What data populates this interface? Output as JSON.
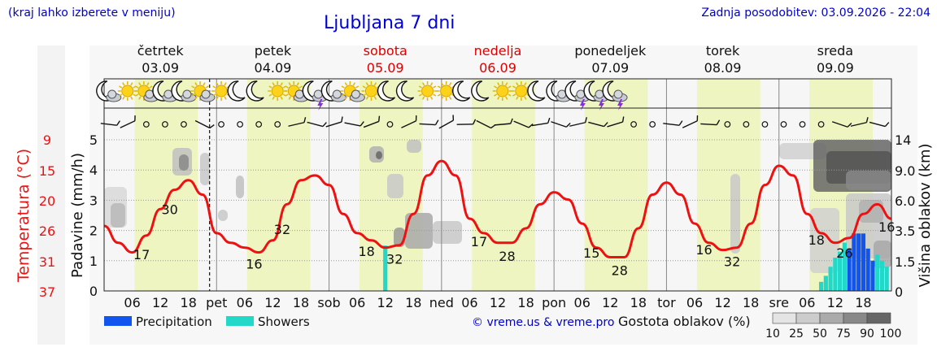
{
  "header": {
    "hint": "(kraj lahko izberete v meniju)",
    "title": "Ljubljana 7 dni",
    "updated": "Zadnja posodobitev: 03.09.2026 - 22:04"
  },
  "days": [
    {
      "name": "četrtek",
      "date": "03.09",
      "weekend": false
    },
    {
      "name": "petek",
      "date": "04.09",
      "weekend": false
    },
    {
      "name": "sobota",
      "date": "05.09",
      "weekend": true
    },
    {
      "name": "nedelja",
      "date": "06.09",
      "weekend": true
    },
    {
      "name": "ponedeljek",
      "date": "07.09",
      "weekend": false
    },
    {
      "name": "torek",
      "date": "08.09",
      "weekend": false
    },
    {
      "name": "sreda",
      "date": "09.09",
      "weekend": false
    }
  ],
  "colors": {
    "temperature": "#ee1111",
    "precipitation": "#1155ee",
    "showers": "#22d8c8",
    "daylight": "#eef5c0",
    "night": "#f6f6f6",
    "weekend": "#dd0000",
    "link": "#0000cc"
  },
  "chart_data": {
    "type": "line",
    "x_unit": "hour",
    "x_tick_labels": [
      "06",
      "12",
      "18",
      "pet",
      "06",
      "12",
      "18",
      "sob",
      "06",
      "12",
      "18",
      "ned",
      "06",
      "12",
      "18",
      "pon",
      "06",
      "12",
      "18",
      "tor",
      "06",
      "12",
      "18",
      "sre",
      "06",
      "12",
      "18"
    ],
    "left_axis": {
      "label": "Padavine (mm/h)",
      "range": [
        0,
        5
      ],
      "ticks": [
        "0",
        "1",
        "2",
        "3",
        "4",
        "5"
      ]
    },
    "temp_axis": {
      "label": "Temperatura (°C)",
      "ticks": [
        "9",
        "15",
        "20",
        "26",
        "31",
        "37"
      ]
    },
    "right_axis": {
      "label": "Višina oblakov (km)",
      "ticks": [
        "0",
        "1.5",
        "3.5",
        "6.0",
        "9.0",
        "14"
      ]
    },
    "temperature": {
      "name": "Temperatura",
      "x": [
        0,
        3,
        6,
        9,
        12,
        15,
        18,
        21,
        24,
        27,
        30,
        33,
        36,
        39,
        42,
        45,
        48,
        51,
        54,
        57,
        60,
        63,
        66,
        69,
        72,
        75,
        78,
        81,
        84,
        87,
        90,
        93,
        96,
        99,
        102,
        105,
        108,
        111,
        114,
        117,
        120,
        123,
        126,
        129,
        132,
        135,
        138,
        141,
        144,
        147,
        150,
        153,
        156,
        159,
        162,
        165,
        168
      ],
      "y": [
        22.5,
        19,
        17,
        20.5,
        26,
        30,
        32,
        29,
        21,
        19,
        18,
        17,
        19.5,
        27,
        32,
        33,
        31,
        25,
        21,
        19.5,
        18,
        18.5,
        25,
        33,
        36,
        33,
        24,
        21,
        19,
        19,
        22,
        27,
        29.5,
        28,
        23,
        18,
        16,
        16,
        22,
        29,
        31.5,
        29,
        23,
        19,
        17.5,
        18,
        23,
        31,
        35,
        33,
        25,
        21,
        19,
        20,
        25,
        27,
        24
      ]
    },
    "temperature_labels": [
      {
        "x": 8,
        "text": "17"
      },
      {
        "x": 14,
        "text": "30"
      },
      {
        "x": 32,
        "text": "16"
      },
      {
        "x": 38,
        "text": "32"
      },
      {
        "x": 56,
        "text": "18"
      },
      {
        "x": 62,
        "text": "32"
      },
      {
        "x": 80,
        "text": "17"
      },
      {
        "x": 86,
        "text": "28"
      },
      {
        "x": 104,
        "text": "15"
      },
      {
        "x": 110,
        "text": "28"
      },
      {
        "x": 128,
        "text": "16"
      },
      {
        "x": 134,
        "text": "32"
      },
      {
        "x": 152,
        "text": "18"
      },
      {
        "x": 158,
        "text": "26"
      },
      {
        "x": 167,
        "text": "16"
      }
    ],
    "precipitation": {
      "name": "Precipitation",
      "x": [
        159,
        160,
        161,
        162,
        163,
        164
      ],
      "values": [
        1.4,
        1.9,
        1.9,
        1.9,
        1.4,
        1.0
      ]
    },
    "showers": {
      "name": "Showers",
      "x": [
        60,
        153,
        154,
        155,
        156,
        157,
        158,
        165,
        166,
        167
      ],
      "values": [
        1.5,
        0.3,
        0.5,
        0.8,
        1.1,
        1.3,
        1.6,
        1.2,
        1.0,
        0.8
      ]
    },
    "cloud_legend": {
      "label": "Gostota oblakov (%)",
      "ticks": [
        "10",
        "25",
        "50",
        "75",
        "90",
        "100"
      ]
    },
    "legend": [
      {
        "name": "Precipitation",
        "color": "#1155ee"
      },
      {
        "name": "Showers",
        "color": "#22d8c8"
      }
    ]
  },
  "icons": [
    {
      "x": 1,
      "kind": "moon-cloud-icon"
    },
    {
      "x": 5,
      "kind": "sun-icon"
    },
    {
      "x": 9,
      "kind": "sun-cloud-icon"
    },
    {
      "x": 13,
      "kind": "moon-cloud-icon"
    },
    {
      "x": 17,
      "kind": "moon-cloud-icon"
    },
    {
      "x": 21,
      "kind": "sun-cloud-icon"
    },
    {
      "x": 25,
      "kind": "sun-icon"
    },
    {
      "x": 29,
      "kind": "moon-icon"
    },
    {
      "x": 33,
      "kind": "moon-icon"
    },
    {
      "x": 37,
      "kind": "sun-icon"
    },
    {
      "x": 41,
      "kind": "sun-cloud-icon"
    },
    {
      "x": 45,
      "kind": "thunder-icon"
    },
    {
      "x": 49,
      "kind": "moon-cloud-icon"
    },
    {
      "x": 53,
      "kind": "sun-cloud-icon"
    },
    {
      "x": 57,
      "kind": "sun-icon"
    },
    {
      "x": 61,
      "kind": "moon-icon"
    },
    {
      "x": 65,
      "kind": "moon-icon"
    },
    {
      "x": 69,
      "kind": "sun-icon"
    },
    {
      "x": 73,
      "kind": "sun-icon"
    },
    {
      "x": 77,
      "kind": "moon-icon"
    },
    {
      "x": 81,
      "kind": "moon-icon"
    },
    {
      "x": 85,
      "kind": "sun-icon"
    },
    {
      "x": 89,
      "kind": "sun-icon"
    },
    {
      "x": 93,
      "kind": "moon-icon"
    },
    {
      "x": 97,
      "kind": "moon-cloud-icon"
    },
    {
      "x": 101,
      "kind": "thunder-icon"
    },
    {
      "x": 105,
      "kind": "thunder-icon"
    },
    {
      "x": 109,
      "kind": "thunder-icon"
    }
  ],
  "footer": {
    "credit": "© vreme.us & vreme.pro"
  }
}
